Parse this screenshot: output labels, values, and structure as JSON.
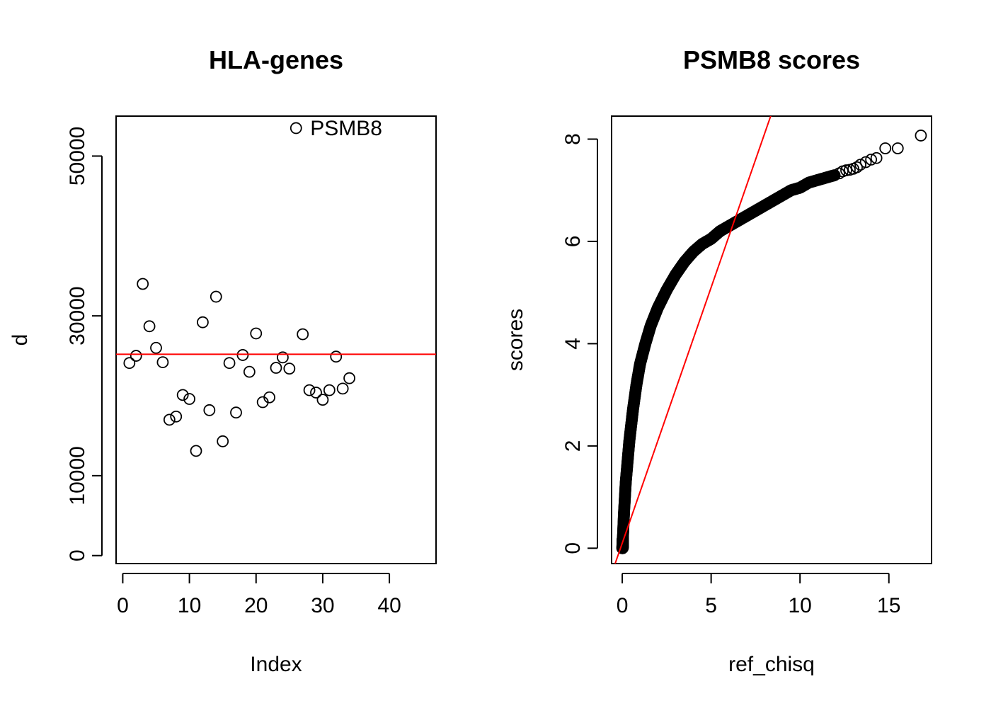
{
  "chart_data": [
    {
      "type": "scatter",
      "title": "HLA-genes",
      "xlabel": "Index",
      "ylabel": "d",
      "xlim": [
        -1,
        47
      ],
      "ylim": [
        -1000,
        55000
      ],
      "xticks": [
        "0",
        "10",
        "20",
        "30",
        "40"
      ],
      "yticks": [
        "0",
        "10000",
        "30000",
        "50000"
      ],
      "x": [
        1,
        2,
        3,
        4,
        5,
        6,
        7,
        8,
        9,
        10,
        11,
        12,
        13,
        14,
        15,
        16,
        17,
        18,
        19,
        20,
        21,
        22,
        23,
        24,
        25,
        26,
        27,
        28,
        29,
        30,
        31,
        32,
        33,
        34
      ],
      "y": [
        24100,
        25000,
        34000,
        28700,
        26000,
        24200,
        17000,
        17400,
        20100,
        19600,
        13100,
        29200,
        18200,
        32400,
        14300,
        24100,
        17900,
        25100,
        23000,
        27800,
        19200,
        19800,
        23500,
        24800,
        23400,
        53500,
        27700,
        20700,
        20400,
        19500,
        20700,
        24900,
        20900,
        22200
      ],
      "hline": 25200,
      "annotations": [
        {
          "x": 26,
          "y": 53500,
          "text": "PSMB8"
        }
      ],
      "colors": {
        "points": "#000000",
        "hline": "#ff0000"
      }
    },
    {
      "type": "scatter",
      "title": "PSMB8 scores",
      "xlabel": "ref_chisq",
      "ylabel": "scores",
      "xlim": [
        -0.6,
        17.4
      ],
      "ylim": [
        -0.3,
        8.45
      ],
      "xticks": [
        "0",
        "5",
        "10",
        "15"
      ],
      "yticks": [
        "0",
        "2",
        "4",
        "6",
        "8"
      ],
      "abline": {
        "intercept": 0.1,
        "slope": 1.0
      },
      "curve": [
        [
          0.0,
          0.0
        ],
        [
          0.05,
          0.3
        ],
        [
          0.1,
          0.7
        ],
        [
          0.15,
          1.0
        ],
        [
          0.2,
          1.3
        ],
        [
          0.3,
          1.7
        ],
        [
          0.4,
          2.1
        ],
        [
          0.5,
          2.4
        ],
        [
          0.6,
          2.7
        ],
        [
          0.8,
          3.2
        ],
        [
          1.0,
          3.6
        ],
        [
          1.3,
          4.0
        ],
        [
          1.6,
          4.35
        ],
        [
          2.0,
          4.7
        ],
        [
          2.5,
          5.05
        ],
        [
          3.0,
          5.35
        ],
        [
          3.5,
          5.6
        ],
        [
          4.0,
          5.8
        ],
        [
          4.5,
          5.95
        ],
        [
          5.0,
          6.05
        ],
        [
          5.5,
          6.2
        ],
        [
          6.0,
          6.3
        ],
        [
          6.5,
          6.4
        ],
        [
          7.0,
          6.5
        ],
        [
          7.5,
          6.6
        ],
        [
          8.0,
          6.7
        ],
        [
          8.5,
          6.8
        ],
        [
          9.0,
          6.9
        ],
        [
          9.5,
          7.0
        ],
        [
          10.0,
          7.05
        ],
        [
          10.5,
          7.15
        ],
        [
          11.0,
          7.2
        ],
        [
          11.5,
          7.25
        ],
        [
          12.0,
          7.3
        ]
      ],
      "tail_points": [
        [
          12.2,
          7.33
        ],
        [
          12.4,
          7.37
        ],
        [
          12.6,
          7.39
        ],
        [
          12.8,
          7.4
        ],
        [
          13.0,
          7.42
        ],
        [
          13.2,
          7.45
        ],
        [
          13.4,
          7.5
        ],
        [
          13.7,
          7.55
        ],
        [
          14.0,
          7.6
        ],
        [
          14.3,
          7.63
        ],
        [
          14.8,
          7.82
        ],
        [
          15.5,
          7.82
        ],
        [
          16.8,
          8.07
        ]
      ],
      "colors": {
        "points": "#000000",
        "abline": "#ff0000"
      }
    }
  ]
}
